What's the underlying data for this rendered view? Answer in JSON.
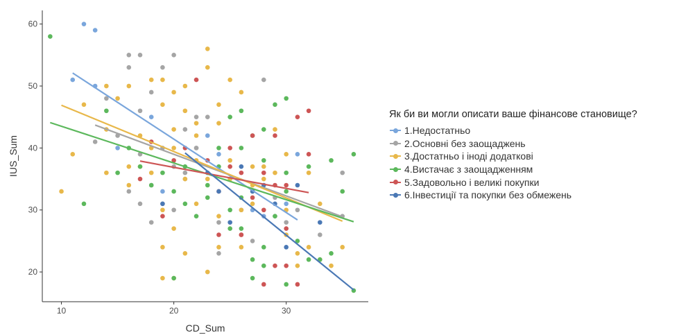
{
  "chart_data": {
    "type": "scatter",
    "xlabel": "CD_Sum",
    "ylabel": "IUS_Sum",
    "xlim": [
      8.3,
      37.3
    ],
    "ylim": [
      15.2,
      62.2
    ],
    "xticks": [
      10,
      20,
      30
    ],
    "yticks": [
      20,
      30,
      40,
      50,
      60
    ],
    "grid": false,
    "legend": {
      "title": "Як би ви могли описати ваше фінансове становище?",
      "position": "right"
    },
    "series": [
      {
        "name": "1.Недостатньо",
        "color": "#7aa6dc",
        "points": [
          [
            12,
            60
          ],
          [
            13,
            59
          ],
          [
            11,
            51
          ],
          [
            13,
            50
          ],
          [
            15,
            40
          ],
          [
            18,
            45
          ],
          [
            19,
            33
          ],
          [
            23,
            42
          ],
          [
            24,
            39
          ],
          [
            27,
            30
          ],
          [
            28,
            29
          ],
          [
            30,
            31
          ],
          [
            31,
            39
          ]
        ],
        "trend": {
          "x": [
            11,
            31
          ],
          "y": [
            52.1,
            28.4
          ]
        }
      },
      {
        "name": "2.Основні без заощаджень",
        "color": "#a5a5a5",
        "points": [
          [
            13,
            41
          ],
          [
            14,
            48
          ],
          [
            16,
            55
          ],
          [
            17,
            55
          ],
          [
            16,
            53
          ],
          [
            19,
            53
          ],
          [
            20,
            55
          ],
          [
            17,
            46
          ],
          [
            18,
            49
          ],
          [
            21,
            43
          ],
          [
            22,
            45
          ],
          [
            23,
            45
          ],
          [
            19,
            40
          ],
          [
            17,
            39
          ],
          [
            20,
            37
          ],
          [
            21,
            36
          ],
          [
            18,
            34
          ],
          [
            19,
            31
          ],
          [
            17,
            31
          ],
          [
            20,
            30
          ],
          [
            21,
            35
          ],
          [
            22,
            40
          ],
          [
            24,
            23
          ],
          [
            25,
            35
          ],
          [
            27,
            33
          ],
          [
            28,
            51
          ],
          [
            29,
            32
          ],
          [
            30,
            28
          ],
          [
            31,
            30
          ],
          [
            33,
            26
          ],
          [
            35,
            36
          ],
          [
            35,
            29
          ],
          [
            16,
            33
          ],
          [
            18,
            28
          ],
          [
            24,
            28
          ],
          [
            26,
            30
          ],
          [
            27,
            25
          ],
          [
            29,
            29
          ],
          [
            15,
            42
          ],
          [
            22,
            40
          ]
        ],
        "trend": {
          "x": [
            13,
            35
          ],
          "y": [
            43.7,
            28.9
          ]
        }
      },
      {
        "name": "3.Достатньо і іноді додаткові",
        "color": "#e8b84a",
        "points": [
          [
            10,
            33
          ],
          [
            11,
            39
          ],
          [
            12,
            47
          ],
          [
            14,
            50
          ],
          [
            15,
            48
          ],
          [
            16,
            50
          ],
          [
            17,
            42
          ],
          [
            18,
            51
          ],
          [
            19,
            51
          ],
          [
            19,
            47
          ],
          [
            20,
            49
          ],
          [
            21,
            50
          ],
          [
            22,
            44
          ],
          [
            23,
            56
          ],
          [
            23,
            53
          ],
          [
            24,
            47
          ],
          [
            25,
            51
          ],
          [
            26,
            49
          ],
          [
            24,
            44
          ],
          [
            22,
            42
          ],
          [
            21,
            46
          ],
          [
            20,
            43
          ],
          [
            18,
            40
          ],
          [
            17,
            37
          ],
          [
            16,
            34
          ],
          [
            14,
            36
          ],
          [
            19,
            30
          ],
          [
            20,
            27
          ],
          [
            21,
            23
          ],
          [
            19,
            24
          ],
          [
            19,
            19
          ],
          [
            20,
            19
          ],
          [
            23,
            20
          ],
          [
            24,
            24
          ],
          [
            25,
            38
          ],
          [
            26,
            30
          ],
          [
            27,
            34
          ],
          [
            28,
            35
          ],
          [
            29,
            36
          ],
          [
            29,
            43
          ],
          [
            30,
            39
          ],
          [
            30,
            26
          ],
          [
            31,
            23
          ],
          [
            31,
            21
          ],
          [
            32,
            24
          ],
          [
            33,
            22
          ],
          [
            34,
            21
          ],
          [
            35,
            24
          ],
          [
            32,
            36
          ],
          [
            33,
            31
          ],
          [
            21,
            35
          ],
          [
            22,
            31
          ],
          [
            23,
            35
          ],
          [
            24,
            29
          ],
          [
            25,
            35
          ],
          [
            22,
            38
          ],
          [
            14,
            43
          ],
          [
            16,
            37
          ],
          [
            27,
            37
          ],
          [
            28,
            37
          ],
          [
            30,
            30
          ],
          [
            26,
            24
          ],
          [
            27,
            31
          ],
          [
            18,
            36
          ],
          [
            20,
            40
          ]
        ],
        "trend": {
          "x": [
            10,
            35
          ],
          "y": [
            46.9,
            28.2
          ]
        }
      },
      {
        "name": "4.Вистачає з заощадженням",
        "color": "#5cb85c",
        "points": [
          [
            9,
            58
          ],
          [
            12,
            31
          ],
          [
            14,
            46
          ],
          [
            15,
            36
          ],
          [
            16,
            40
          ],
          [
            17,
            37
          ],
          [
            18,
            34
          ],
          [
            20,
            33
          ],
          [
            20,
            19
          ],
          [
            21,
            31
          ],
          [
            22,
            29
          ],
          [
            23,
            32
          ],
          [
            24,
            40
          ],
          [
            25,
            45
          ],
          [
            26,
            46
          ],
          [
            27,
            42
          ],
          [
            28,
            43
          ],
          [
            29,
            47
          ],
          [
            30,
            48
          ],
          [
            30,
            33
          ],
          [
            31,
            25
          ],
          [
            32,
            22
          ],
          [
            33,
            22
          ],
          [
            34,
            23
          ],
          [
            34,
            38
          ],
          [
            35,
            33
          ],
          [
            36,
            39
          ],
          [
            36,
            17
          ],
          [
            28,
            24
          ],
          [
            27,
            19
          ],
          [
            26,
            27
          ],
          [
            25,
            27
          ],
          [
            29,
            29
          ],
          [
            30,
            18
          ],
          [
            27,
            22
          ],
          [
            23,
            34
          ],
          [
            19,
            36
          ],
          [
            21,
            37
          ],
          [
            24,
            37
          ],
          [
            25,
            30
          ],
          [
            26,
            32
          ],
          [
            28,
            21
          ],
          [
            32,
            37
          ],
          [
            30,
            36
          ],
          [
            28,
            38
          ],
          [
            26,
            40
          ]
        ],
        "trend": {
          "x": [
            9,
            36
          ],
          "y": [
            44.1,
            28.1
          ]
        }
      },
      {
        "name": "5.Задовольно і великі покупки",
        "color": "#cd5555",
        "points": [
          [
            17,
            35
          ],
          [
            18,
            41
          ],
          [
            19,
            29
          ],
          [
            20,
            38
          ],
          [
            21,
            40
          ],
          [
            22,
            51
          ],
          [
            23,
            38
          ],
          [
            24,
            33
          ],
          [
            25,
            37
          ],
          [
            25,
            40
          ],
          [
            26,
            36
          ],
          [
            26,
            26
          ],
          [
            27,
            32
          ],
          [
            27,
            42
          ],
          [
            28,
            36
          ],
          [
            28,
            18
          ],
          [
            29,
            42
          ],
          [
            29,
            21
          ],
          [
            30,
            34
          ],
          [
            30,
            21
          ],
          [
            31,
            45
          ],
          [
            31,
            18
          ],
          [
            32,
            46
          ],
          [
            32,
            39
          ],
          [
            26,
            26
          ],
          [
            24,
            26
          ],
          [
            28,
            30
          ],
          [
            30,
            27
          ],
          [
            29,
            34
          ]
        ],
        "trend": {
          "x": [
            17,
            32
          ],
          "y": [
            37.9,
            32.8
          ]
        }
      },
      {
        "name": "6.Інвестиції та покупки без обмежень",
        "color": "#4a78b5",
        "points": [
          [
            19,
            31
          ],
          [
            23,
            36
          ],
          [
            24,
            33
          ],
          [
            26,
            37
          ],
          [
            27,
            33
          ],
          [
            29,
            31
          ],
          [
            30,
            24
          ],
          [
            31,
            34
          ],
          [
            33,
            28
          ],
          [
            25,
            28
          ],
          [
            28,
            34
          ]
        ],
        "trend": {
          "x": [
            21,
            36
          ],
          "y": [
            39.2,
            17.1
          ]
        }
      }
    ]
  }
}
